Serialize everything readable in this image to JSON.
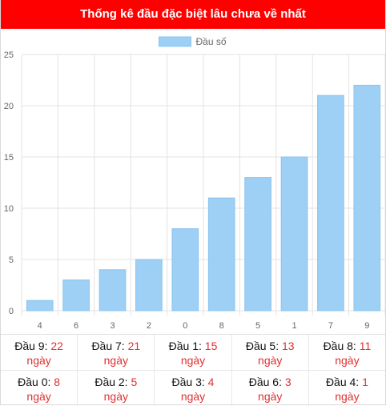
{
  "header": {
    "title": "Thống kê đầu đặc biệt lâu chưa về nhất"
  },
  "colors": {
    "header_bg": "#ff0000",
    "bar": "#9ecff5",
    "bar_stroke": "#8cc4ee",
    "accent": "#e03030"
  },
  "chart_data": {
    "type": "bar",
    "categories": [
      "4",
      "6",
      "3",
      "2",
      "0",
      "8",
      "5",
      "1",
      "7",
      "9"
    ],
    "series": [
      {
        "name": "Đầu số",
        "values": [
          1,
          3,
          4,
          5,
          8,
          11,
          13,
          15,
          21,
          22
        ]
      }
    ],
    "title": "",
    "xlabel": "",
    "ylabel": "",
    "ylim": [
      0,
      25
    ],
    "yticks": [
      "0",
      "5",
      "10",
      "15",
      "20",
      "25"
    ],
    "grid": true,
    "legend": "top-center"
  },
  "stats": {
    "unit": "ngày",
    "row1": [
      {
        "label": "Đầu 9:",
        "value": "22"
      },
      {
        "label": "Đầu 7:",
        "value": "21"
      },
      {
        "label": "Đầu 1:",
        "value": "15"
      },
      {
        "label": "Đầu 5:",
        "value": "13"
      },
      {
        "label": "Đầu 8:",
        "value": "11"
      }
    ],
    "row2": [
      {
        "label": "Đầu 0:",
        "value": "8"
      },
      {
        "label": "Đầu 2:",
        "value": "5"
      },
      {
        "label": "Đầu 3:",
        "value": "4"
      },
      {
        "label": "Đầu 6:",
        "value": "3"
      },
      {
        "label": "Đầu 4:",
        "value": "1"
      }
    ]
  }
}
